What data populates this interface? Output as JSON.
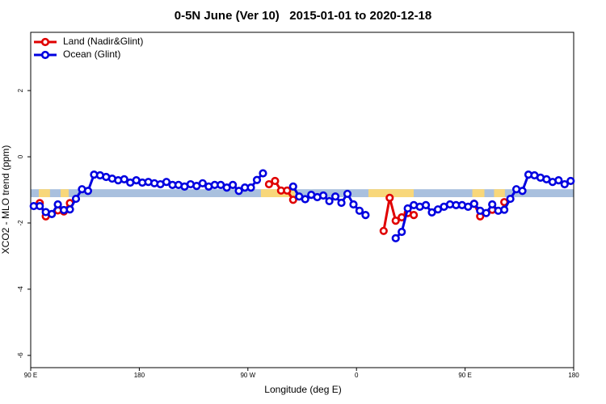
{
  "chart_data": {
    "type": "line",
    "title": "0-5N June (Ver 10)   2015-01-01 to 2020-12-18",
    "xlabel": "Longitude (deg E)",
    "ylabel": "XCO2 - MLO trend (ppm)",
    "xlim": [
      90,
      540
    ],
    "ylim": [
      -6.37,
      3.76
    ],
    "xticks": [
      {
        "value": 90,
        "label": "90 E"
      },
      180,
      {
        "value": 270,
        "label": "90 W"
      },
      {
        "value": 360,
        "label": "0"
      },
      {
        "value": 450,
        "label": "90 E"
      },
      {
        "value": 540,
        "label": "180"
      }
    ],
    "yticks": [
      -6,
      -4,
      -2,
      0,
      2
    ],
    "legend": "top-left",
    "band_ylim": [
      -1.22,
      -0.98
    ],
    "band_color": "#a9c0de",
    "land_color": "#f8d77a",
    "land_ranges": [
      [
        96.7,
        106
      ],
      [
        114.8,
        121.5
      ],
      [
        280.8,
        309
      ],
      [
        369.9,
        407.4
      ],
      [
        456,
        466
      ],
      [
        474,
        483
      ]
    ],
    "x": [
      92.5,
      97.5,
      102.5,
      107.5,
      112.5,
      117.5,
      122.5,
      127.5,
      132.5,
      137.5,
      142.5,
      147.5,
      152.5,
      157.5,
      162.5,
      167.5,
      172.5,
      177.5,
      182.5,
      187.5,
      192.5,
      197.5,
      202.5,
      207.5,
      212.5,
      217.5,
      222.5,
      227.5,
      232.5,
      237.5,
      242.5,
      247.5,
      252.5,
      257.5,
      262.5,
      267.5,
      272.5,
      277.5,
      282.5,
      287.5,
      292.5,
      297.5,
      302.5,
      307.5,
      312.5,
      317.5,
      322.5,
      327.5,
      332.5,
      337.5,
      342.5,
      347.5,
      352.5,
      357.5,
      362.5,
      367.5,
      372.5,
      377.5,
      382.5,
      387.5,
      392.5,
      397.5,
      402.5,
      407.5,
      412.5,
      417.5,
      422.5,
      427.5,
      432.5,
      437.5,
      442.5,
      447.5,
      452.5,
      457.5,
      462.5,
      467.5,
      472.5,
      477.5,
      482.5,
      487.5,
      492.5,
      497.5,
      502.5,
      507.5,
      512.5,
      517.5,
      522.5,
      527.5,
      532.5,
      537.5
    ],
    "series": [
      {
        "name": "Land (Nadir&Glint)",
        "color": "#e00000",
        "values": [
          null,
          -1.4,
          -1.8,
          null,
          -1.62,
          -1.65,
          -1.4,
          null,
          null,
          null,
          null,
          null,
          null,
          null,
          null,
          null,
          null,
          null,
          null,
          null,
          null,
          null,
          null,
          null,
          null,
          null,
          null,
          null,
          null,
          null,
          null,
          null,
          null,
          null,
          null,
          null,
          null,
          null,
          null,
          -0.83,
          -0.73,
          -1.02,
          -1.02,
          -1.3,
          null,
          null,
          null,
          null,
          null,
          null,
          null,
          null,
          null,
          null,
          null,
          null,
          null,
          null,
          -2.24,
          -1.24,
          -1.93,
          -1.83,
          -1.7,
          -1.76,
          null,
          null,
          null,
          null,
          null,
          null,
          null,
          null,
          null,
          -1.42,
          -1.8,
          null,
          -1.6,
          null,
          -1.37,
          null,
          null,
          null,
          null,
          null,
          null,
          null,
          null,
          null,
          null,
          null
        ]
      },
      {
        "name": "Ocean (Glint)",
        "color": "#0000e0",
        "values": [
          -1.49,
          -1.49,
          -1.67,
          -1.73,
          -1.44,
          -1.61,
          -1.59,
          -1.27,
          -0.98,
          -1.03,
          -0.54,
          -0.56,
          -0.61,
          -0.66,
          -0.71,
          -0.68,
          -0.78,
          -0.71,
          -0.78,
          -0.76,
          -0.8,
          -0.83,
          -0.76,
          -0.85,
          -0.85,
          -0.9,
          -0.83,
          -0.88,
          -0.8,
          -0.9,
          -0.85,
          -0.85,
          -0.93,
          -0.85,
          -1.03,
          -0.93,
          -0.93,
          -0.7,
          -0.5,
          null,
          null,
          null,
          null,
          -0.9,
          -1.2,
          -1.28,
          -1.15,
          -1.22,
          -1.17,
          -1.34,
          -1.2,
          -1.39,
          -1.12,
          -1.44,
          -1.63,
          -1.76,
          null,
          null,
          null,
          null,
          -2.46,
          -2.27,
          -1.56,
          -1.46,
          -1.51,
          -1.46,
          -1.68,
          -1.59,
          -1.51,
          -1.44,
          -1.46,
          -1.46,
          -1.51,
          -1.42,
          -1.63,
          -1.7,
          -1.44,
          -1.63,
          -1.6,
          -1.27,
          -0.98,
          -1.03,
          -0.54,
          -0.56,
          -0.63,
          -0.68,
          -0.76,
          -0.71,
          -0.83,
          -0.73
        ]
      }
    ]
  }
}
